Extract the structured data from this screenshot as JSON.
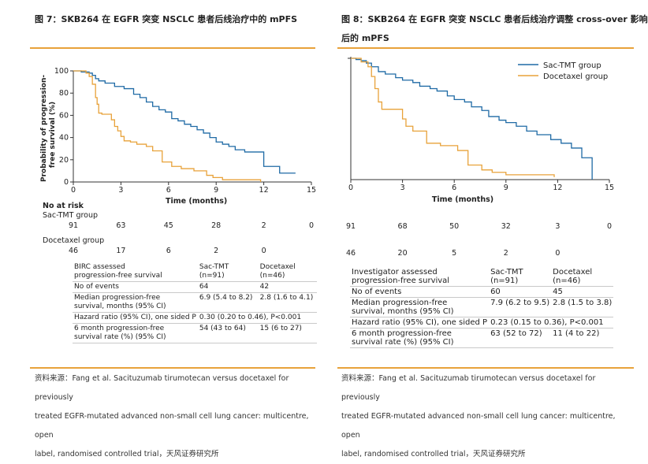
{
  "figures": [
    {
      "title": "图 7：SKB264 在 EGFR 突变 NSCLC 患者后线治疗中的 mPFS",
      "risk": {
        "heading": "No at risk",
        "groups": [
          {
            "name": "Sac-TMT group",
            "counts": [
              "91",
              "63",
              "45",
              "28",
              "2",
              "0"
            ]
          },
          {
            "name": "Docetaxel group",
            "counts": [
              "46",
              "17",
              "6",
              "2",
              "0"
            ]
          }
        ]
      },
      "table": {
        "header": [
          "BIRC assessed\nprogression-free survival",
          "Sac-TMT\n(n=91)",
          "Docetaxel\n(n=46)"
        ],
        "rows": [
          [
            "No of events",
            "64",
            "42"
          ],
          [
            "Median progression-free\nsurvival, months (95% CI)",
            "6.9 (5.4 to 8.2)",
            "2.8 (1.6 to 4.1)"
          ],
          [
            "Hazard ratio (95% CI), one sided P",
            "0.30 (0.20 to 0.46), P<0.001",
            ""
          ],
          [
            "6 month progression-free\nsurvival rate (%) (95% CI)",
            "54 (43 to 64)",
            "15 (6 to 27)"
          ]
        ]
      },
      "source": [
        "资料来源：Fang et al. Sacituzumab tirumotecan versus docetaxel for previously",
        "treated EGFR-mutated advanced non-small cell lung cancer: multicentre, open",
        "label, randomised controlled trial，天风证券研究所"
      ]
    },
    {
      "title": "图 8：SKB264 在 EGFR 突变 NSCLC 患者后线治疗调整 cross-over 影响",
      "title2": "后的 mPFS",
      "risk": {
        "groups": [
          {
            "name": "",
            "counts": [
              "91",
              "68",
              "50",
              "32",
              "3",
              "0"
            ]
          },
          {
            "name": "",
            "counts": [
              "46",
              "20",
              "5",
              "2",
              "0"
            ]
          }
        ]
      },
      "table": {
        "header": [
          "Investigator assessed\nprogression-free survival",
          "Sac-TMT\n(n=91)",
          "Docetaxel\n(n=46)"
        ],
        "rows": [
          [
            "No of events",
            "60",
            "45"
          ],
          [
            "Median progression-free\nsurvival, months (95% CI)",
            "7.9 (6.2 to 9.5)",
            "2.8 (1.5 to 3.8)"
          ],
          [
            "Hazard ratio (95% CI), one sided P",
            "0.23 (0.15 to 0.36), P<0.001",
            ""
          ],
          [
            "6 month progression-free\nsurvival rate (%) (95% CI)",
            "63 (52 to 72)",
            "11 (4 to 22)"
          ]
        ]
      },
      "source": [
        "资料来源：Fang et al. Sacituzumab tirumotecan versus docetaxel for previously",
        "treated EGFR-mutated advanced non-small cell lung cancer: multicentre, open",
        "label, randomised controlled trial，天风证券研究所"
      ]
    }
  ],
  "chart_data": [
    {
      "type": "line",
      "step": true,
      "xlabel": "Time (months)",
      "ylabel": "Probability of progression-\nfree survival (%)",
      "xlim": [
        0,
        15
      ],
      "ylim": [
        0,
        100
      ],
      "xticks": [
        "0",
        "3",
        "6",
        "9",
        "12",
        "15"
      ],
      "yticks": [
        "0",
        "20",
        "40",
        "60",
        "80",
        "100"
      ],
      "legend": null,
      "series": [
        {
          "name": "Sac-TMT group",
          "color": "#1f6aa5",
          "x": [
            0,
            0.5,
            1.0,
            1.2,
            1.4,
            1.6,
            2.0,
            2.6,
            3.2,
            3.8,
            4.2,
            4.6,
            5.0,
            5.4,
            5.8,
            6.2,
            6.6,
            7.0,
            7.4,
            7.8,
            8.2,
            8.6,
            9.0,
            9.4,
            9.8,
            10.2,
            10.8,
            11.4,
            12.0,
            13.0,
            14.0
          ],
          "y": [
            100,
            99,
            98,
            96,
            93,
            91,
            89,
            86,
            84,
            79,
            76,
            72,
            68,
            65,
            63,
            57,
            55,
            52,
            50,
            47,
            44,
            40,
            36,
            34,
            32,
            29,
            27,
            27,
            14,
            8,
            8
          ]
        },
        {
          "name": "Docetaxel group",
          "color": "#e8a23a",
          "x": [
            0,
            0.8,
            1.0,
            1.2,
            1.4,
            1.5,
            1.6,
            1.8,
            2.4,
            2.6,
            2.8,
            3.0,
            3.2,
            3.6,
            4.0,
            4.6,
            5.0,
            5.6,
            6.2,
            6.8,
            7.6,
            8.4,
            8.8,
            9.4,
            11.8
          ],
          "y": [
            100,
            98,
            95,
            88,
            76,
            70,
            62,
            61,
            56,
            50,
            46,
            41,
            37,
            36,
            34,
            32,
            28,
            18,
            14,
            12,
            10,
            6,
            4,
            2,
            0
          ]
        }
      ]
    },
    {
      "type": "line",
      "step": true,
      "xlabel": "Time (months)",
      "xlim": [
        0,
        15
      ],
      "ylim": [
        0,
        100
      ],
      "xticks": [
        "0",
        "3",
        "6",
        "9",
        "12",
        "15"
      ],
      "legend": "top-right",
      "series": [
        {
          "name": "Sac-TMT group",
          "color": "#1f6aa5",
          "x": [
            0,
            0.3,
            0.6,
            0.9,
            1.2,
            1.6,
            2.0,
            2.6,
            3.0,
            3.6,
            4.0,
            4.6,
            5.0,
            5.6,
            6.0,
            6.6,
            7.0,
            7.6,
            8.0,
            8.6,
            9.0,
            9.6,
            10.2,
            10.8,
            11.6,
            12.2,
            12.8,
            13.4,
            14.0
          ],
          "y": [
            100,
            99,
            98,
            96,
            93,
            89,
            87,
            84,
            82,
            80,
            77,
            75,
            73,
            69,
            66,
            64,
            60,
            57,
            52,
            49,
            47,
            44,
            40,
            37,
            33,
            30,
            26,
            18,
            0
          ]
        },
        {
          "name": "Docetaxel group",
          "color": "#e8a23a",
          "x": [
            0,
            0.6,
            1.0,
            1.2,
            1.4,
            1.6,
            1.8,
            2.6,
            3.0,
            3.2,
            3.6,
            4.4,
            5.2,
            6.2,
            6.8,
            7.6,
            8.2,
            9.0,
            11.8
          ],
          "y": [
            100,
            97,
            93,
            85,
            75,
            64,
            58,
            58,
            50,
            44,
            40,
            30,
            28,
            24,
            12,
            8,
            6,
            4,
            2
          ]
        }
      ]
    }
  ]
}
